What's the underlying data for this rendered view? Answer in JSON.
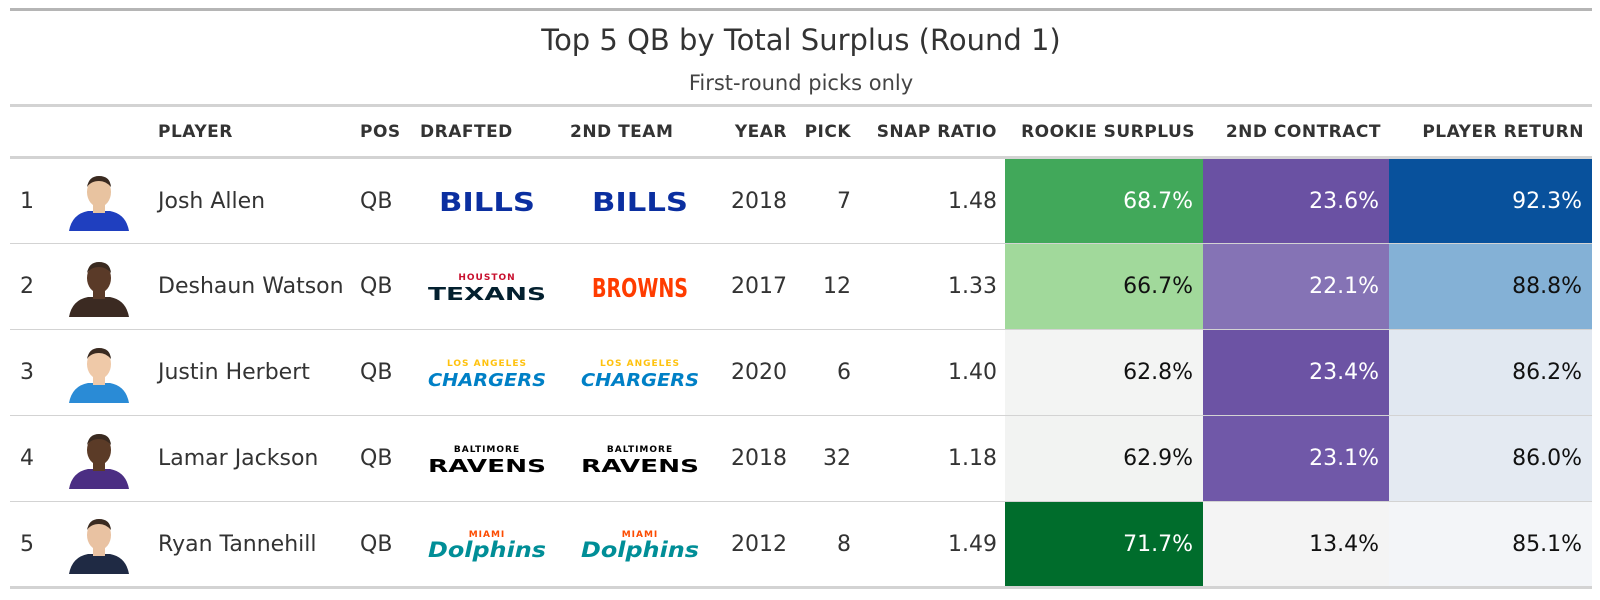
{
  "title": "Top 5 QB by Total Surplus (Round 1)",
  "subtitle": "First-round picks only",
  "columns": {
    "rank": "",
    "headshot": "",
    "player": "PLAYER",
    "pos": "POS",
    "drafted": "DRAFTED",
    "second_team": "2ND TEAM",
    "year": "YEAR",
    "pick": "PICK",
    "snap_ratio": "SNAP RATIO",
    "rookie_surplus": "ROOKIE SURPLUS",
    "second_contract": "2ND CONTRACT",
    "player_return": "PLAYER RETURN"
  },
  "rows": [
    {
      "rank": "1",
      "player": "Josh Allen",
      "pos": "QB",
      "drafted": "bills-logo",
      "second_team": "bills-logo",
      "year": "2018",
      "pick": "7",
      "snap_ratio": "1.48",
      "rookie_surplus": "68.7%",
      "second_contract": "23.6%",
      "player_return": "92.3%",
      "jersey": "#1f3fbf",
      "skin": "#e8c3a0",
      "colors": {
        "rookie_surplus": "#41a85a",
        "second_contract": "#6a51a3",
        "player_return": "#08519c"
      },
      "text_colors": {
        "rookie_surplus": "#ffffff",
        "second_contract": "#ffffff",
        "player_return": "#ffffff"
      }
    },
    {
      "rank": "2",
      "player": "Deshaun Watson",
      "pos": "QB",
      "drafted": "texans-logo",
      "second_team": "browns-logo",
      "year": "2017",
      "pick": "12",
      "snap_ratio": "1.33",
      "rookie_surplus": "66.7%",
      "second_contract": "22.1%",
      "player_return": "88.8%",
      "jersey": "#3b2a22",
      "skin": "#5a3a28",
      "colors": {
        "rookie_surplus": "#a1d99b",
        "second_contract": "#8573b5",
        "player_return": "#84b1d6"
      },
      "text_colors": {
        "rookie_surplus": "#111111",
        "second_contract": "#ffffff",
        "player_return": "#111111"
      }
    },
    {
      "rank": "3",
      "player": "Justin Herbert",
      "pos": "QB",
      "drafted": "chargers-logo",
      "second_team": "chargers-logo",
      "year": "2020",
      "pick": "6",
      "snap_ratio": "1.40",
      "rookie_surplus": "62.8%",
      "second_contract": "23.4%",
      "player_return": "86.2%",
      "jersey": "#2a8bd6",
      "skin": "#efc9a8",
      "colors": {
        "rookie_surplus": "#f3f4f3",
        "second_contract": "#6c53a4",
        "player_return": "#e1e8f1"
      },
      "text_colors": {
        "rookie_surplus": "#111111",
        "second_contract": "#ffffff",
        "player_return": "#111111"
      }
    },
    {
      "rank": "4",
      "player": "Lamar Jackson",
      "pos": "QB",
      "drafted": "ravens-logo",
      "second_team": "ravens-logo",
      "year": "2018",
      "pick": "32",
      "snap_ratio": "1.18",
      "rookie_surplus": "62.9%",
      "second_contract": "23.1%",
      "player_return": "86.0%",
      "jersey": "#4b2e83",
      "skin": "#5b3b27",
      "colors": {
        "rookie_surplus": "#f2f3f2",
        "second_contract": "#7058a8",
        "player_return": "#e4eaf2"
      },
      "text_colors": {
        "rookie_surplus": "#111111",
        "second_contract": "#ffffff",
        "player_return": "#111111"
      }
    },
    {
      "rank": "5",
      "player": "Ryan Tannehill",
      "pos": "QB",
      "drafted": "dolphins-logo",
      "second_team": "dolphins-logo",
      "year": "2012",
      "pick": "8",
      "snap_ratio": "1.49",
      "rookie_surplus": "71.7%",
      "second_contract": "13.4%",
      "player_return": "85.1%",
      "jersey": "#1f2a44",
      "skin": "#e9c2a2",
      "colors": {
        "rookie_surplus": "#006d2c",
        "second_contract": "#f4f4f4",
        "player_return": "#f3f5f8"
      },
      "text_colors": {
        "rookie_surplus": "#ffffff",
        "second_contract": "#111111",
        "player_return": "#111111"
      }
    }
  ],
  "team_logos": {
    "bills-logo": {
      "lines": [
        "BILLS"
      ],
      "colors": [
        "#0b2fa0"
      ]
    },
    "texans-logo": {
      "lines": [
        "HOUSTON",
        "TEXANS"
      ],
      "colors": [
        "#c8102e",
        "#03202f"
      ]
    },
    "browns-logo": {
      "lines": [
        "BROWNS"
      ],
      "colors": [
        "#ff3c00"
      ]
    },
    "chargers-logo": {
      "lines": [
        "LOS ANGELES",
        "CHARGERS"
      ],
      "colors": [
        "#ffc20e",
        "#0080c6"
      ]
    },
    "ravens-logo": {
      "lines": [
        "BALTIMORE",
        "RAVENS"
      ],
      "colors": [
        "#000000",
        "#000000"
      ]
    },
    "dolphins-logo": {
      "lines": [
        "MIAMI",
        "Dolphins"
      ],
      "colors": [
        "#fc4c02",
        "#008e97"
      ]
    }
  },
  "chart_data": {
    "type": "table",
    "title": "Top 5 QB by Total Surplus (Round 1)",
    "subtitle": "First-round picks only",
    "columns": [
      "PLAYER",
      "POS",
      "DRAFTED",
      "2ND TEAM",
      "YEAR",
      "PICK",
      "SNAP RATIO",
      "ROOKIE SURPLUS",
      "2ND CONTRACT",
      "PLAYER RETURN"
    ],
    "rows": [
      [
        "Josh Allen",
        "QB",
        "BILLS",
        "BILLS",
        2018,
        7,
        1.48,
        68.7,
        23.6,
        92.3
      ],
      [
        "Deshaun Watson",
        "QB",
        "TEXANS",
        "BROWNS",
        2017,
        12,
        1.33,
        66.7,
        22.1,
        88.8
      ],
      [
        "Justin Herbert",
        "QB",
        "CHARGERS",
        "CHARGERS",
        2020,
        6,
        1.4,
        62.8,
        23.4,
        86.2
      ],
      [
        "Lamar Jackson",
        "QB",
        "RAVENS",
        "RAVENS",
        2018,
        32,
        1.18,
        62.9,
        23.1,
        86.0
      ],
      [
        "Ryan Tannehill",
        "QB",
        "DOLPHINS",
        "DOLPHINS",
        2012,
        8,
        1.49,
        71.7,
        13.4,
        85.1
      ]
    ]
  }
}
